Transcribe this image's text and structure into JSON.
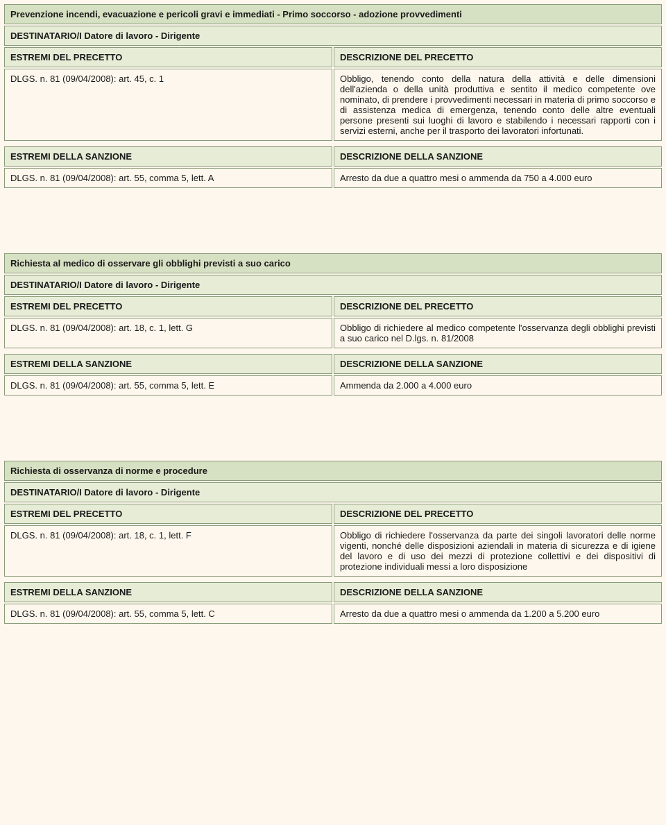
{
  "labels": {
    "estremi_precetto": "ESTREMI DEL PRECETTO",
    "descrizione_precetto": "DESCRIZIONE DEL PRECETTO",
    "estremi_sanzione": "ESTREMI DELLA SANZIONE",
    "descrizione_sanzione": "DESCRIZIONE DELLA SANZIONE"
  },
  "blocks": [
    {
      "title": "Prevenzione incendi, evacuazione e pericoli gravi e immediati - Primo soccorso - adozione provvedimenti",
      "destinatario": "DESTINATARIO/I Datore di lavoro - Dirigente",
      "precetto_ref": "DLGS. n. 81 (09/04/2008): art. 45, c. 1",
      "precetto_descr": "Obbligo, tenendo conto della natura della attività e delle dimensioni dell'azienda o della unità produttiva e sentito il medico competente ove nominato, di prendere i provvedimenti necessari in materia di primo soccorso e di assistenza medica di emergenza, tenendo conto delle altre eventuali persone presenti sui luoghi di lavoro e stabilendo i necessari rapporti con i servizi esterni, anche per il trasporto dei lavoratori infortunati.",
      "sanzione_ref": "DLGS. n. 81 (09/04/2008): art. 55, comma 5, lett. A",
      "sanzione_descr": "Arresto da due a quattro mesi o ammenda da 750 a 4.000 euro"
    },
    {
      "title": "Richiesta al medico di osservare gli obblighi previsti a suo carico",
      "destinatario": "DESTINATARIO/I Datore di lavoro - Dirigente",
      "precetto_ref": "DLGS. n. 81 (09/04/2008): art. 18, c. 1, lett. G",
      "precetto_descr": "Obbligo di richiedere al medico competente l'osservanza degli obblighi previsti a suo carico nel D.lgs. n. 81/2008",
      "sanzione_ref": "DLGS. n. 81 (09/04/2008): art. 55, comma 5, lett. E",
      "sanzione_descr": "Ammenda da 2.000 a 4.000 euro"
    },
    {
      "title": "Richiesta di osservanza di norme e procedure",
      "destinatario": "DESTINATARIO/I Datore di lavoro - Dirigente",
      "precetto_ref": "DLGS. n. 81 (09/04/2008): art. 18, c. 1, lett. F",
      "precetto_descr": "Obbligo di richiedere l'osservanza da parte dei singoli lavoratori delle norme vigenti, nonché delle disposizioni aziendali in materia di sicurezza e di igiene del lavoro e di uso dei mezzi di protezione collettivi e dei dispositivi di protezione individuali messi a loro disposizione",
      "sanzione_ref": "DLGS. n. 81 (09/04/2008): art. 55, comma 5, lett. C",
      "sanzione_descr": "Arresto da due a quattro mesi o ammenda da 1.200 a 5.200 euro"
    }
  ],
  "colors": {
    "page_bg": "#fdf7ed",
    "header_title_bg": "#d6e0c2",
    "header_sub_bg": "#e6ecd6",
    "border": "#8a9b7a",
    "text": "#1a1a1a"
  }
}
